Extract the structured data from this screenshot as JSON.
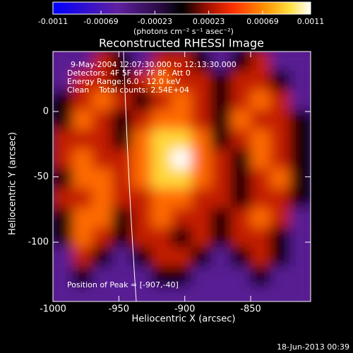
{
  "chart_data": {
    "type": "heatmap",
    "title": "Reconstructed RHESSI Image",
    "colorbar_label": "(photons cm⁻² s⁻¹ asec⁻²)",
    "clim": [
      -0.0011,
      0.0011
    ],
    "cticks": [
      -0.0011,
      -0.00069,
      -0.00023,
      0.00023,
      0.00069,
      0.0011
    ],
    "x_label": "Heliocentric X (arcsec)",
    "y_label": "Heliocentric Y (arcsec)",
    "xlim": [
      -1000,
      -804.5
    ],
    "ylim": [
      -145.4,
      45.9
    ],
    "xticks": [
      -1000,
      -950,
      -900,
      -850
    ],
    "yticks": [
      0,
      -50,
      -100
    ],
    "annotations": [
      "9-May-2004 12:07:30.000 to 12:13:30.000",
      "Detectors: 4F 5F 6F 7F 8F, Att 0",
      "Energy Range: 6.0 - 12.0 keV",
      "Clean    Total counts: 2.54E+04"
    ],
    "peak_label": "Position of Peak = [-907,-40]",
    "timestamp": "18-Jun-2013 00:39",
    "x": [
      -992.5,
      -977.5,
      -962.5,
      -947.5,
      -932.5,
      -917.5,
      -902.5,
      -887.5,
      -872.5,
      -857.5,
      -842.5,
      -827.5,
      -812.5
    ],
    "y": [
      38.5,
      23.5,
      8.5,
      -6.5,
      -21.5,
      -36.5,
      -51.5,
      -66.5,
      -81.5,
      -96.5,
      -111.5,
      -126.5,
      -141.5
    ],
    "z": [
      [
        -0.0005,
        -0.0005,
        0.0003,
        0,
        -0.0005,
        0.0003,
        0.0003,
        0,
        -0.0005,
        0,
        0.0003,
        -0.0005,
        -0.0005
      ],
      [
        -0.0005,
        0.0003,
        0.0003,
        0,
        0.0003,
        0.0006,
        0.0003,
        0.0003,
        0,
        0.0003,
        0.0003,
        0,
        -0.0005
      ],
      [
        0,
        0.0003,
        0.0006,
        0.0003,
        0,
        0.0003,
        0.0006,
        0.0003,
        0,
        0.0003,
        0.0006,
        0.0003,
        -0.0005
      ],
      [
        0,
        0.0006,
        0.0003,
        0,
        0.0003,
        0.0006,
        0.0006,
        0.0003,
        0,
        0.0006,
        0.0003,
        0.0003,
        0
      ],
      [
        0.0003,
        0.0003,
        0.0003,
        0,
        0.0006,
        0.0009,
        0.0009,
        0.0006,
        0,
        0.0003,
        0.0006,
        0.0003,
        0
      ],
      [
        0.0003,
        0.0006,
        0.0003,
        0.0003,
        0.0006,
        0.0009,
        0.0011,
        0.0006,
        0.0003,
        0,
        0.0006,
        0.0003,
        0
      ],
      [
        0,
        0.0006,
        0.0006,
        0.0003,
        0.0006,
        0.0009,
        0.0009,
        0.0006,
        0.0003,
        0,
        0.0003,
        0.0006,
        0
      ],
      [
        0.0003,
        0.0003,
        0.0006,
        0.0003,
        0.0003,
        0.0006,
        0.0006,
        0.0003,
        0.0003,
        0,
        0.0003,
        0.0003,
        0
      ],
      [
        0,
        0.0006,
        0.0006,
        0,
        0.0003,
        0.0006,
        0.0003,
        0.0003,
        0,
        0.0003,
        0.0006,
        0.0003,
        -0.0005
      ],
      [
        0,
        0.0006,
        0.0003,
        0,
        0.0003,
        0.0003,
        0,
        0.0003,
        0,
        0.0003,
        0.0003,
        0,
        -0.0005
      ],
      [
        -0.0005,
        0.0003,
        0,
        -0.0005,
        0,
        0.0003,
        0.0003,
        0,
        -0.0005,
        0,
        0.0003,
        0,
        -0.0005
      ],
      [
        -0.0005,
        0,
        -0.0005,
        -0.0005,
        -0.0005,
        0,
        0,
        -0.0005,
        -0.0005,
        -0.0005,
        0,
        -0.0005,
        -0.0005
      ],
      [
        -0.0005,
        -0.0005,
        -0.0005,
        -0.0005,
        -0.0005,
        -0.0005,
        -0.0005,
        -0.0005,
        -0.0005,
        -0.0005,
        -0.0005,
        -0.0005,
        -0.0005
      ]
    ]
  }
}
